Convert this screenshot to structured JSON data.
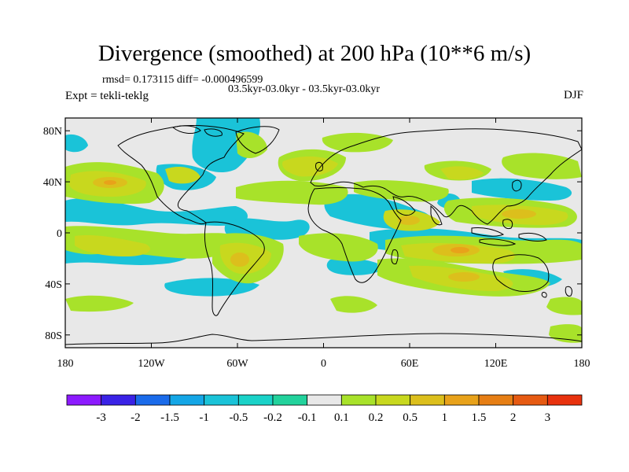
{
  "title": "Divergence (smoothed) at 200 hPa (10**6 m/s)",
  "stats": "rmsd= 0.173115 diff= -0.000496599",
  "period": "03.5kyr-03.0kyr - 03.5kyr-03.0kyr",
  "expt": "Expt = tekli-teklg",
  "season": "DJF",
  "lat_labels": [
    "80N",
    "40N",
    "0",
    "40S",
    "80S"
  ],
  "lat_values": [
    80,
    40,
    0,
    -40,
    -80
  ],
  "lon_labels": [
    "180",
    "120W",
    "60W",
    "0",
    "60E",
    "120E",
    "180"
  ],
  "lon_values": [
    -180,
    -120,
    -60,
    0,
    60,
    120,
    180
  ],
  "colorbar": {
    "colors": [
      "#8c1aff",
      "#3a22e6",
      "#1a6bea",
      "#14a6e6",
      "#1ac3d8",
      "#1ad2c8",
      "#22d29c",
      "#e8e8e8",
      "#a8e22a",
      "#c8d81e",
      "#dcbf1c",
      "#e8a21a",
      "#e67e14",
      "#e65a12",
      "#e8320e"
    ],
    "labels": [
      "-3",
      "-2",
      "-1.5",
      "-1",
      "-0.5",
      "-0.2",
      "-0.1",
      "0.1",
      "0.2",
      "0.5",
      "1",
      "1.5",
      "2",
      "3"
    ]
  },
  "background_color": "#e8e8e8"
}
